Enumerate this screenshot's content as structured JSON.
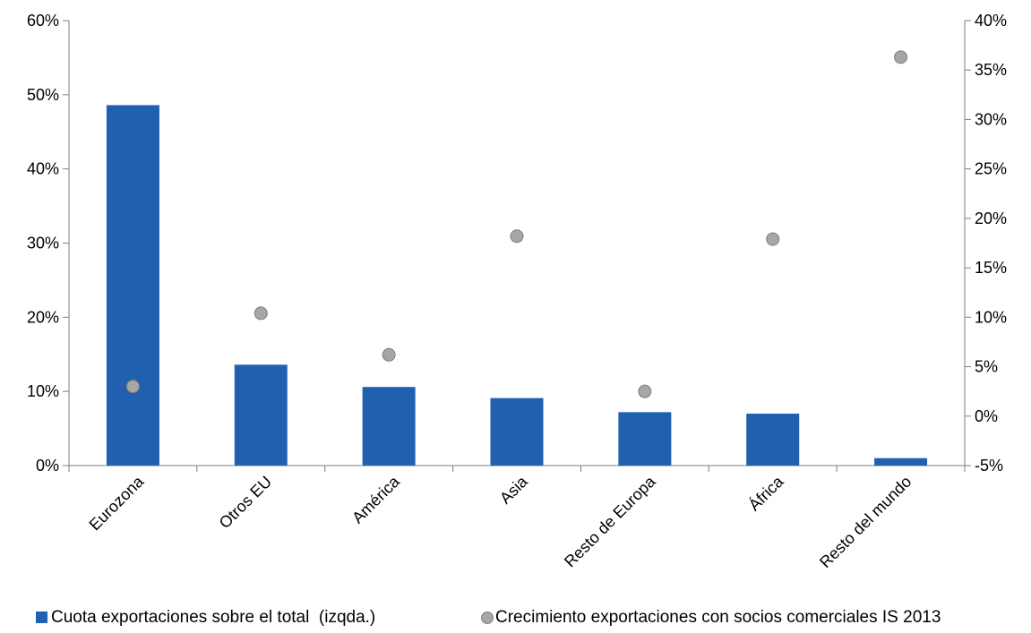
{
  "chart_data": {
    "type": "bar",
    "categories": [
      "Eurozona",
      "Otros EU",
      "América",
      "Asia",
      "Resto de Europa",
      "África",
      "Resto del mundo"
    ],
    "series": [
      {
        "name": "Cuota exportaciones sobre el total  (izqda.)",
        "type": "bar",
        "axis": "left",
        "color": "#2160AE",
        "values": [
          48.6,
          13.6,
          10.6,
          9.1,
          7.2,
          7.0,
          1.0
        ]
      },
      {
        "name": "Crecimiento exportaciones con socios comerciales IS 2013",
        "type": "scatter",
        "axis": "right",
        "color": "#A6A6A6",
        "values": [
          3.0,
          10.4,
          6.2,
          18.2,
          2.5,
          17.9,
          36.3
        ]
      }
    ],
    "y_left": {
      "lim": [
        0,
        60
      ],
      "ticks": [
        0,
        10,
        20,
        30,
        40,
        50,
        60
      ],
      "tick_labels": [
        "0%",
        "10%",
        "20%",
        "30%",
        "40%",
        "50%",
        "60%"
      ]
    },
    "y_right": {
      "lim": [
        -5,
        40
      ],
      "ticks": [
        -5,
        0,
        5,
        10,
        15,
        20,
        25,
        30,
        35,
        40
      ],
      "tick_labels": [
        "-5%",
        "0%",
        "5%",
        "10%",
        "15%",
        "20%",
        "25%",
        "30%",
        "35%",
        "40%"
      ]
    },
    "grid": false,
    "legend_position": "bottom"
  }
}
